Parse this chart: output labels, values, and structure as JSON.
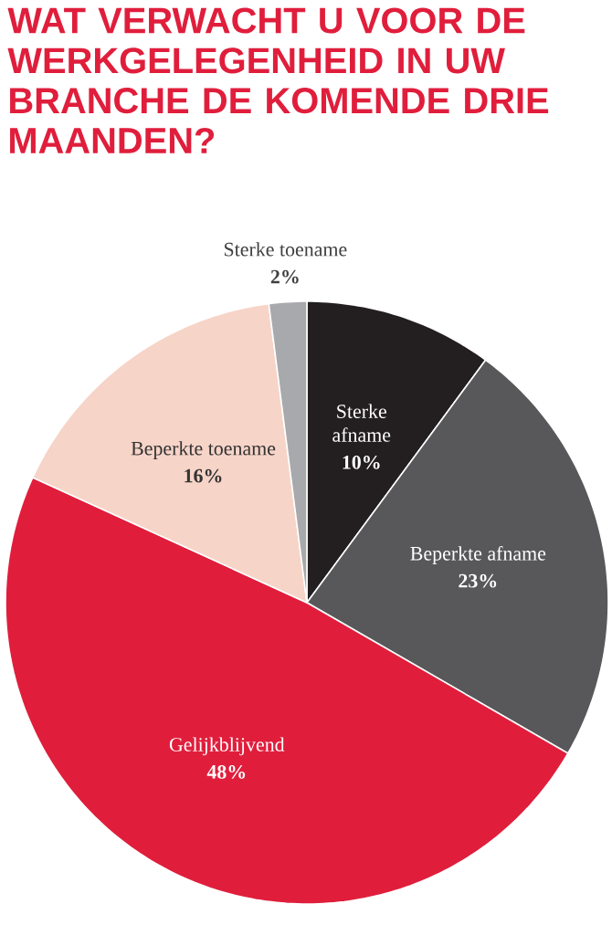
{
  "chart_data": {
    "type": "pie",
    "title": "WAT VERWACHT U VOOR DE WERKGELEGENHEID IN UW BRANCHE DE KOMENDE DRIE MAANDEN?",
    "categories": [
      "Sterke afname",
      "Beperkte afname",
      "Gelijkblijvend",
      "Beperkte toename",
      "Sterke toename"
    ],
    "values": [
      10,
      23,
      48,
      16,
      2
    ],
    "value_labels": [
      "10%",
      "23%",
      "48%",
      "16%",
      "2%"
    ],
    "colors": [
      "#231f20",
      "#58585a",
      "#e01e3c",
      "#f7d4c8",
      "#a7a9ac"
    ]
  }
}
